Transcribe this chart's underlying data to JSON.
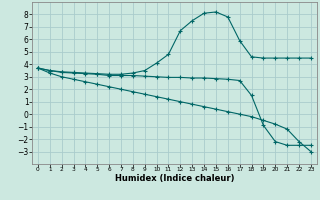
{
  "xlabel": "Humidex (Indice chaleur)",
  "background_color": "#cce8e0",
  "grid_color": "#aacccc",
  "line_color": "#006666",
  "x_values": [
    0,
    1,
    2,
    3,
    4,
    5,
    6,
    7,
    8,
    9,
    10,
    11,
    12,
    13,
    14,
    15,
    16,
    17,
    18,
    19,
    20,
    21,
    22,
    23
  ],
  "line1": [
    3.7,
    3.5,
    3.4,
    3.35,
    3.3,
    3.25,
    3.2,
    3.2,
    3.3,
    3.5,
    4.1,
    4.8,
    6.7,
    7.5,
    8.1,
    8.2,
    7.8,
    5.9,
    4.6,
    4.5,
    4.5,
    4.5,
    4.5,
    4.5
  ],
  "line2": [
    3.7,
    3.5,
    3.35,
    3.3,
    3.25,
    3.2,
    3.1,
    3.1,
    3.1,
    3.05,
    3.0,
    2.95,
    2.95,
    2.9,
    2.9,
    2.85,
    2.8,
    2.7,
    1.5,
    -0.9,
    -2.2,
    -2.5,
    -2.5,
    -2.5
  ],
  "line3": [
    3.7,
    3.3,
    3.0,
    2.8,
    2.6,
    2.4,
    2.2,
    2.0,
    1.8,
    1.6,
    1.4,
    1.2,
    1.0,
    0.8,
    0.6,
    0.4,
    0.2,
    0.0,
    -0.2,
    -0.5,
    -0.8,
    -1.2,
    -2.2,
    -3.0
  ],
  "ylim": [
    -4,
    9
  ],
  "xlim": [
    -0.5,
    23.5
  ],
  "yticks": [
    -3,
    -2,
    -1,
    0,
    1,
    2,
    3,
    4,
    5,
    6,
    7,
    8
  ],
  "xticks": [
    0,
    1,
    2,
    3,
    4,
    5,
    6,
    7,
    8,
    9,
    10,
    11,
    12,
    13,
    14,
    15,
    16,
    17,
    18,
    19,
    20,
    21,
    22,
    23
  ]
}
